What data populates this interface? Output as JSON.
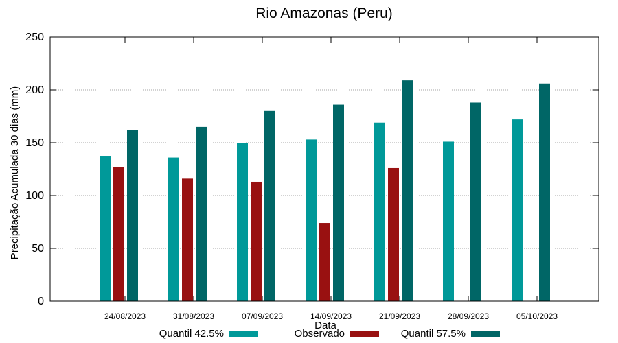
{
  "chart_data": {
    "type": "bar",
    "title": "Rio Amazonas (Peru)",
    "xlabel": "Data",
    "ylabel": "Precipitação Acumulada 30 dias (mm)",
    "ylim": [
      0,
      250
    ],
    "yticks": [
      0,
      50,
      100,
      150,
      200,
      250
    ],
    "grid": true,
    "legend_position": "bottom",
    "categories": [
      "24/08/2023",
      "31/08/2023",
      "07/09/2023",
      "14/09/2023",
      "21/09/2023",
      "28/09/2023",
      "05/10/2023"
    ],
    "series": [
      {
        "name": "Quantil 42.5%",
        "color": "#009999",
        "values": [
          137,
          136,
          150,
          153,
          169,
          151,
          172
        ]
      },
      {
        "name": "Observado",
        "color": "#991111",
        "values": [
          127,
          116,
          113,
          74,
          126,
          null,
          null
        ]
      },
      {
        "name": "Quantil 57.5%",
        "color": "#006666",
        "values": [
          162,
          165,
          180,
          186,
          209,
          188,
          206
        ]
      }
    ]
  }
}
